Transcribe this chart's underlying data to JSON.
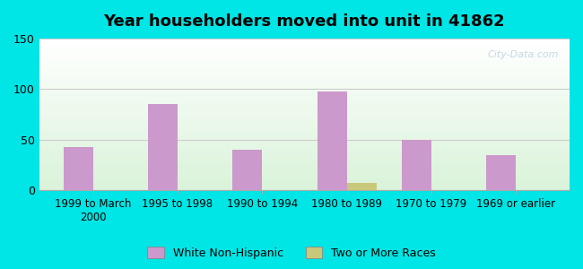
{
  "title": "Year householders moved into unit in 41862",
  "categories": [
    "1999 to March\n2000",
    "1995 to 1998",
    "1990 to 1994",
    "1980 to 1989",
    "1970 to 1979",
    "1969 or earlier"
  ],
  "white_non_hispanic": [
    43,
    85,
    40,
    98,
    50,
    35
  ],
  "two_or_more_races": [
    0,
    0,
    0,
    7,
    0,
    0
  ],
  "bar_color_white": "#cc99cc",
  "bar_color_two": "#c8c87a",
  "background_outer": "#00e5e5",
  "ylim": [
    0,
    150
  ],
  "yticks": [
    0,
    50,
    100,
    150
  ],
  "bar_width": 0.35,
  "legend_labels": [
    "White Non-Hispanic",
    "Two or More Races"
  ]
}
